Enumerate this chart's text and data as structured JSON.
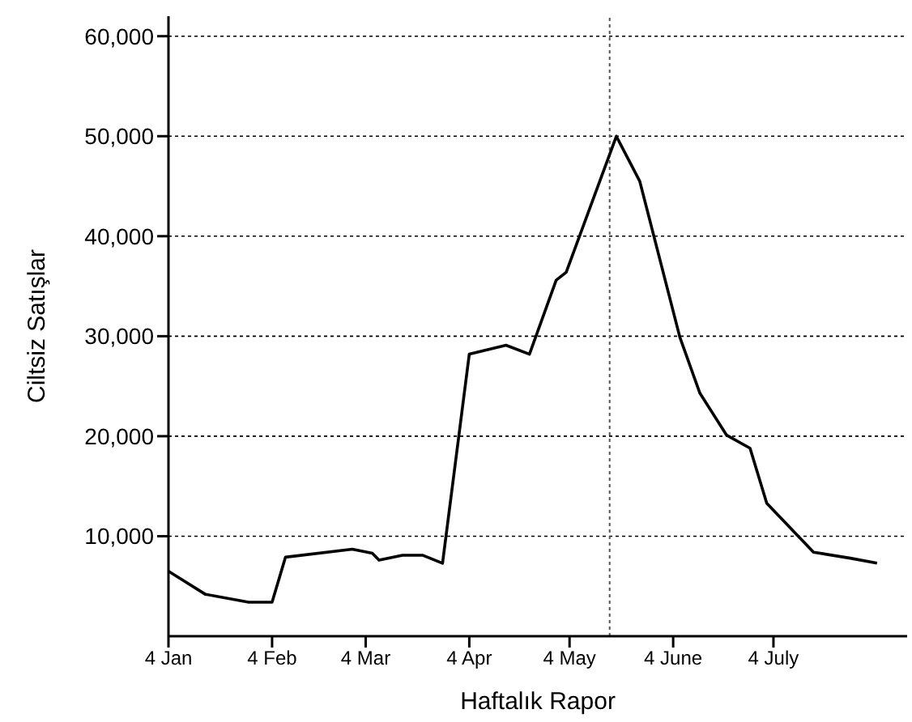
{
  "chart_data": {
    "type": "line",
    "xlabel": "Haftalık Rapor",
    "ylabel": "Ciltsiz Satışlar",
    "x": [
      "--01-04",
      "--01-15",
      "--01-28",
      "--02-04",
      "--02-08",
      "--02-28",
      "--03-06",
      "--03-08",
      "--03-15",
      "--03-21",
      "--03-27",
      "--04-04",
      "--04-15",
      "--04-22",
      "--04-30",
      "--05-03",
      "--05-18",
      "--05-25",
      "--06-06",
      "--06-12",
      "--06-20",
      "--06-27",
      "--07-02",
      "--07-16",
      "--07-27",
      "--08-04"
    ],
    "series": [
      {
        "color": "#000000",
        "values": [
          6500,
          4200,
          3400,
          3400,
          7900,
          8700,
          8300,
          7600,
          8100,
          8100,
          7300,
          28200,
          29100,
          28200,
          35600,
          36400,
          50000,
          45500,
          29900,
          24300,
          20100,
          18800,
          13300,
          8400,
          7800,
          7300
        ]
      }
    ],
    "xlim": [
      "--01-04",
      "--08-13"
    ],
    "xticks": [
      {
        "value": "--01-04",
        "label": "4 Jan"
      },
      {
        "value": "--02-04",
        "label": "4 Feb"
      },
      {
        "value": "--03-04",
        "label": "4 Mar"
      },
      {
        "value": "--04-04",
        "label": "4 Apr"
      },
      {
        "value": "--05-04",
        "label": "4 May"
      },
      {
        "value": "--06-04",
        "label": "4 June"
      },
      {
        "value": "--07-04",
        "label": "4 July"
      }
    ],
    "ylim": [
      0,
      62000
    ],
    "yticks": [
      {
        "value": 10000,
        "label": "10,000"
      },
      {
        "value": 20000,
        "label": "20,000"
      },
      {
        "value": 30000,
        "label": "30,000"
      },
      {
        "value": 40000,
        "label": "40,000"
      },
      {
        "value": 50000,
        "label": "50,000"
      },
      {
        "value": 60000,
        "label": "60,000"
      }
    ],
    "grid": "y",
    "legend": false,
    "marker": "none",
    "line_style": "solid",
    "ref_lines": [
      {
        "axis": "x",
        "value": "--05-16",
        "line_style": "dotted",
        "color": "#555555"
      }
    ]
  }
}
